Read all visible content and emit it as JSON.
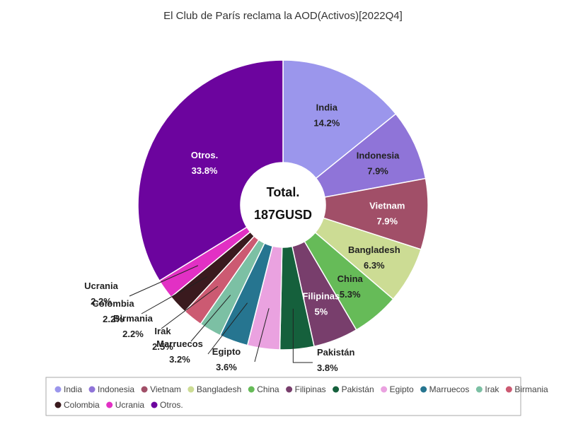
{
  "chart_data": {
    "type": "pie",
    "variant": "donut",
    "title": "El Club de París reclama la AOD(Activos)[2022Q4]",
    "center_label": {
      "line1": "Total.",
      "line2": "187GUSD"
    },
    "legend_position": "bottom",
    "slices": [
      {
        "name": "India",
        "value": 14.2,
        "label": "14.2%",
        "color": "#9b96ec"
      },
      {
        "name": "Indonesia",
        "value": 7.9,
        "label": "7.9%",
        "color": "#8f74d8"
      },
      {
        "name": "Vietnam",
        "value": 7.9,
        "label": "7.9%",
        "color": "#a14f68"
      },
      {
        "name": "Bangladesh",
        "value": 6.3,
        "label": "6.3%",
        "color": "#ccdc94"
      },
      {
        "name": "China",
        "value": 5.3,
        "label": "5.3%",
        "color": "#66bb58"
      },
      {
        "name": "Filipinas",
        "value": 5,
        "label": "5%",
        "color": "#783e6c"
      },
      {
        "name": "Pakistán",
        "value": 3.8,
        "label": "3.8%",
        "color": "#15603c"
      },
      {
        "name": "Egipto",
        "value": 3.6,
        "label": "3.6%",
        "color": "#eaa2e0"
      },
      {
        "name": "Marruecos",
        "value": 3.2,
        "label": "3.2%",
        "color": "#267590"
      },
      {
        "name": "Irak",
        "value": 2.5,
        "label": "2.5%",
        "color": "#7cc0a4"
      },
      {
        "name": "Birmania",
        "value": 2.2,
        "label": "2.2%",
        "color": "#cc5a72"
      },
      {
        "name": "Colombia",
        "value": 2.2,
        "label": "2.2%",
        "color": "#3a1a1e"
      },
      {
        "name": "Ucrania",
        "value": 2.2,
        "label": "2.2%",
        "color": "#e230c4"
      },
      {
        "name": "Otros.",
        "value": 33.8,
        "label": "33.8%",
        "color": "#6c049e"
      }
    ]
  }
}
